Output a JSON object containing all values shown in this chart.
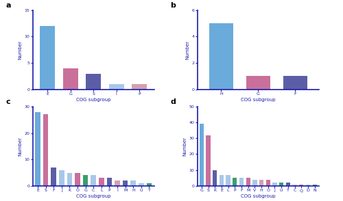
{
  "panel_a": {
    "categories": [
      "E",
      "G",
      "S",
      "I",
      "P"
    ],
    "values": [
      12,
      4,
      3,
      1,
      1
    ],
    "colors": [
      "#6aabdb",
      "#c9709a",
      "#5b5ea6",
      "#a8c8e8",
      "#d4a0b0"
    ],
    "ylim": [
      0,
      15
    ],
    "yticks": [
      0,
      5,
      10,
      15
    ],
    "label": "a"
  },
  "panel_b": {
    "categories": [
      "H",
      "G",
      "F"
    ],
    "values": [
      5,
      1,
      1
    ],
    "colors": [
      "#6aabdb",
      "#c9709a",
      "#5b5ea6"
    ],
    "ylim": [
      0,
      6
    ],
    "yticks": [
      0,
      2,
      4,
      6
    ],
    "label": "b"
  },
  "panel_c": {
    "categories": [
      "E",
      "S",
      "F",
      "J",
      "K",
      "O",
      "G",
      "C",
      "L",
      "P",
      "I",
      "M",
      "H",
      "U",
      "T"
    ],
    "values": [
      28,
      27,
      7,
      6,
      5,
      5,
      4,
      4,
      3,
      3,
      2,
      2,
      2,
      1,
      1
    ],
    "colors": [
      "#6aabdb",
      "#c9709a",
      "#5b5ea6",
      "#a8c8e8",
      "#a8c8e8",
      "#c9709a",
      "#3a9e6e",
      "#a8c8e8",
      "#c9709a",
      "#5b5ea6",
      "#d4a0b0",
      "#5b5ea6",
      "#a8c8e8",
      "#a8c8e8",
      "#3a9e6e"
    ],
    "ylim": [
      0,
      30
    ],
    "yticks": [
      0,
      10,
      20,
      30
    ],
    "label": "c"
  },
  "panel_d": {
    "categories": [
      "G",
      "S",
      "K",
      "E",
      "L",
      "P",
      "F",
      "M",
      "V",
      "H",
      "O",
      "J",
      "U",
      "T",
      "C",
      "Q",
      "D",
      "N"
    ],
    "values": [
      39,
      32,
      10,
      7,
      7,
      5,
      5,
      5,
      4,
      4,
      4,
      2,
      2,
      2,
      1,
      1,
      1,
      1
    ],
    "colors": [
      "#6aabdb",
      "#c9709a",
      "#5b5ea6",
      "#a8c8e8",
      "#a8c8e8",
      "#3a9e6e",
      "#a8c8e8",
      "#c9709a",
      "#a8c8e8",
      "#d4a0b0",
      "#c9709a",
      "#a8c8e8",
      "#3a9e6e",
      "#5b5ea6",
      "#a8c8e8",
      "#c9709a",
      "#a8c8e8",
      "#3a9e6e"
    ],
    "ylim": [
      0,
      50
    ],
    "yticks": [
      0,
      10,
      20,
      30,
      40,
      50
    ],
    "label": "d"
  },
  "xlabel": "COG subgroup",
  "ylabel": "Number",
  "axis_color": "#1a1aaa",
  "background_color": "#ffffff",
  "bar_width": 0.65
}
